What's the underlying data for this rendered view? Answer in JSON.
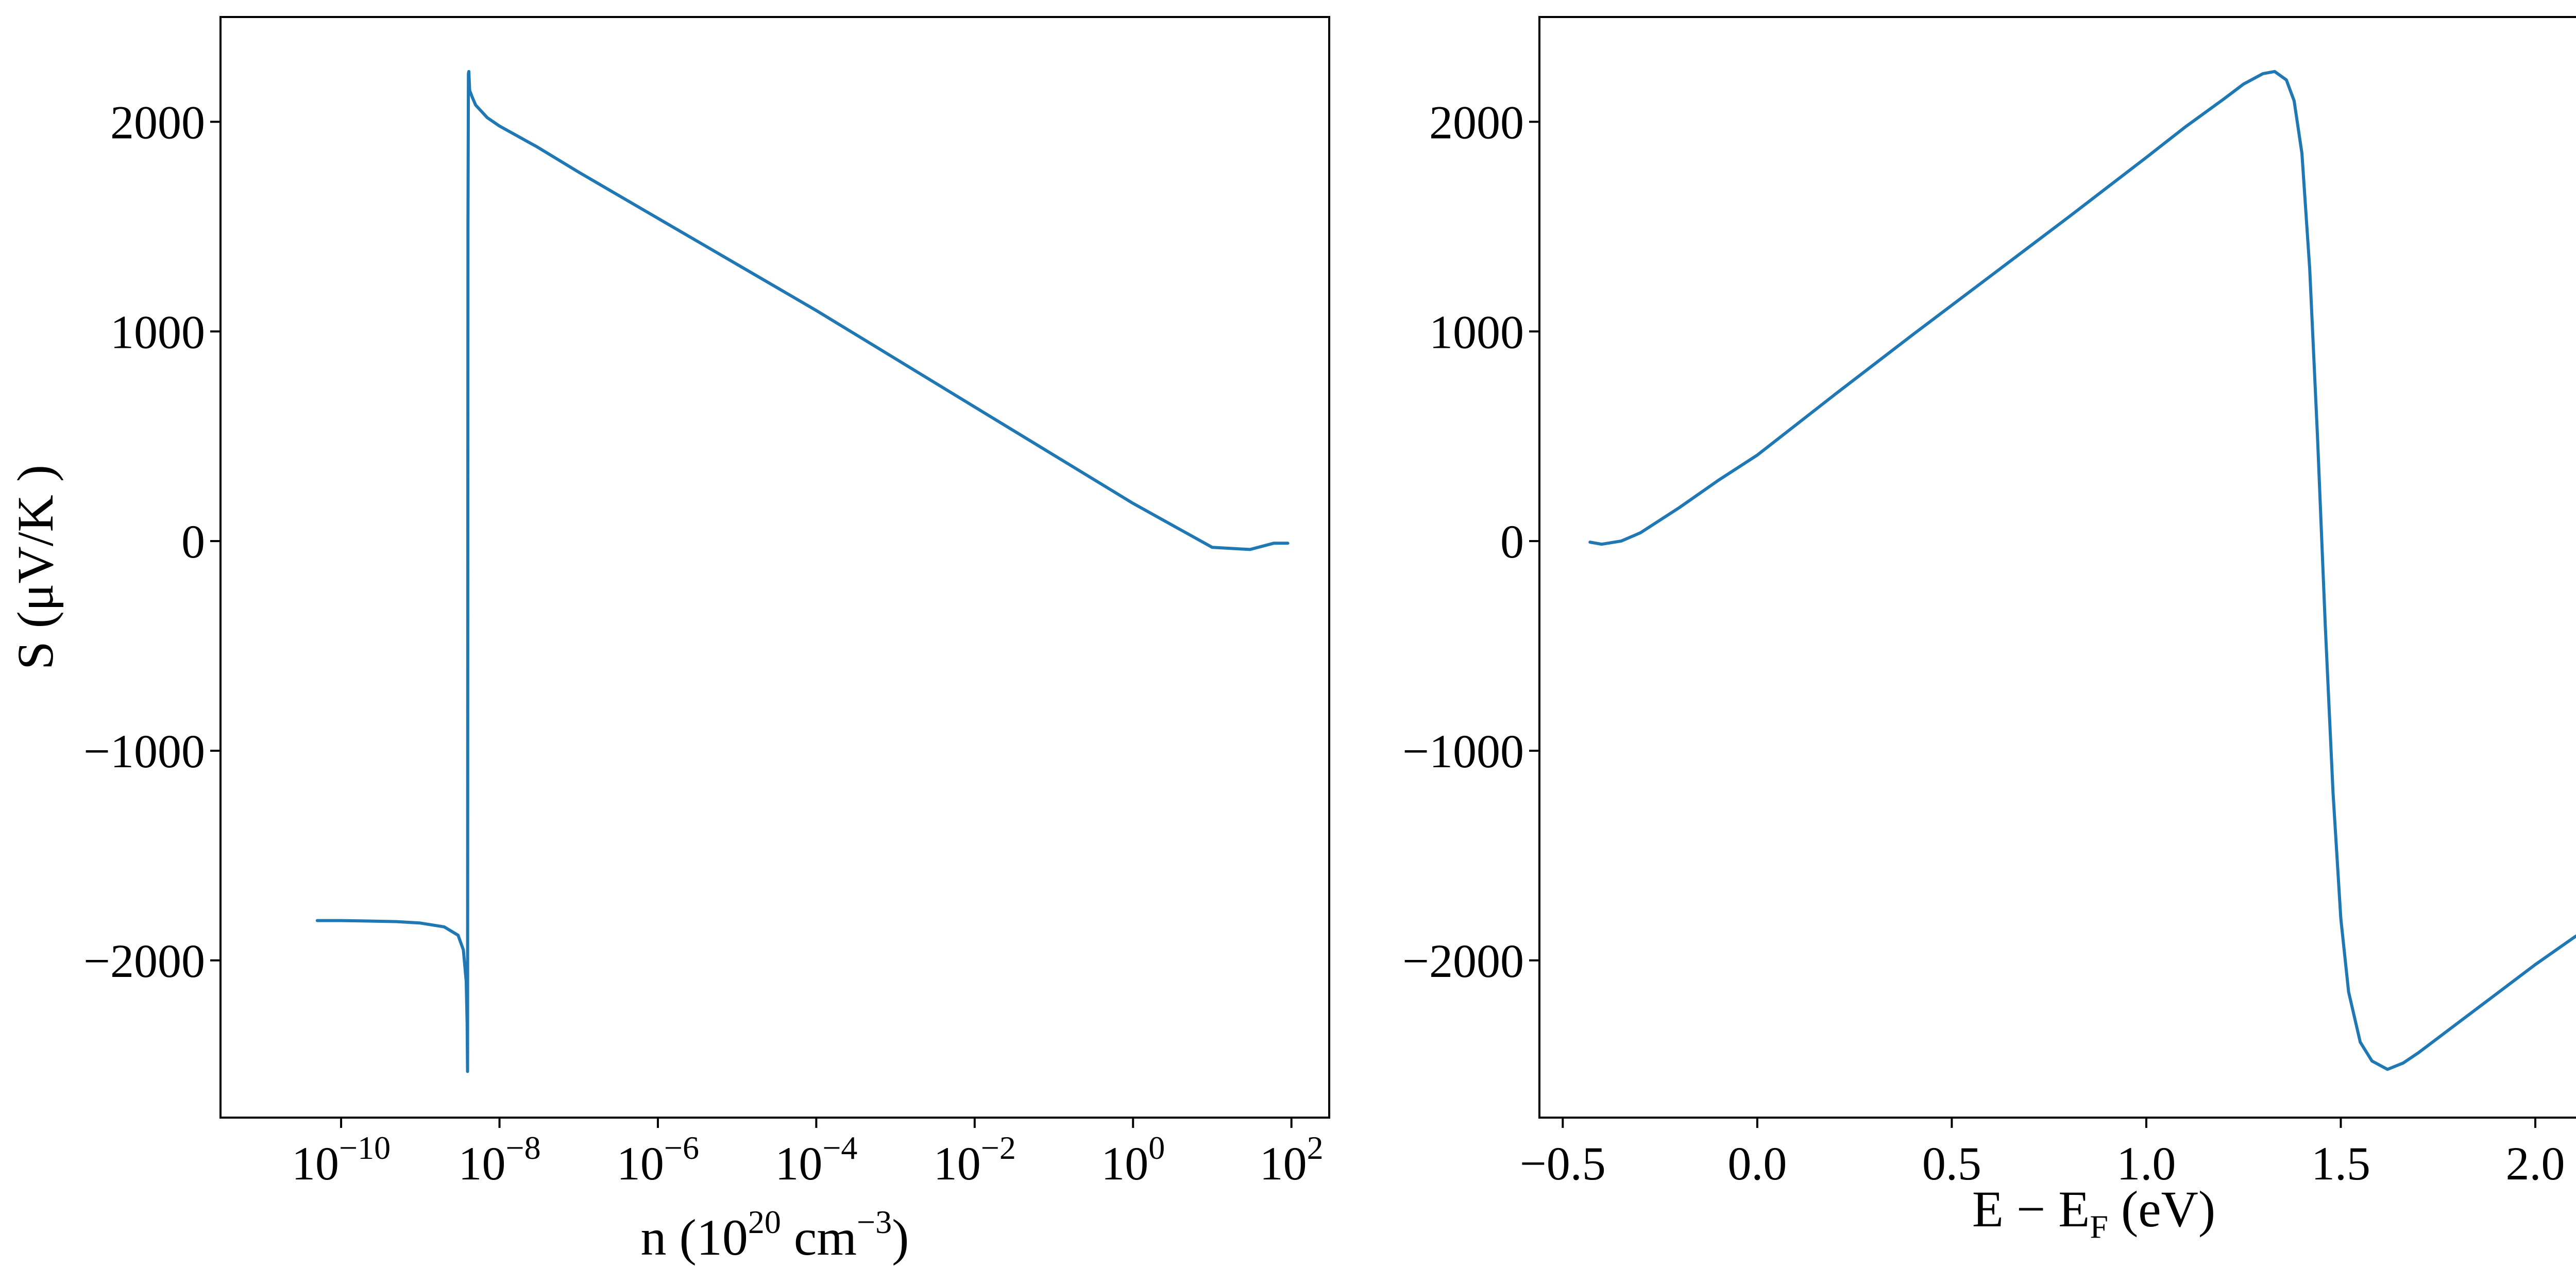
{
  "colors": {
    "series": "#1f77b4",
    "axes": "#000000",
    "background": "#ffffff"
  },
  "chart_data": [
    {
      "type": "line",
      "panel": "left",
      "title": "",
      "xlabel": {
        "base": "n (10",
        "exp1": "20",
        "mid": " cm",
        "exp2": "−3",
        "end": ")"
      },
      "ylabel": "S (μV/K )",
      "xscale": "log",
      "xlim": [
        3e-12,
        300.0
      ],
      "ylim": [
        -2750,
        2500
      ],
      "xticks": [
        {
          "value": 1e-10,
          "base": "10",
          "exp": "−10"
        },
        {
          "value": 1e-08,
          "base": "10",
          "exp": "−8"
        },
        {
          "value": 1e-06,
          "base": "10",
          "exp": "−6"
        },
        {
          "value": 0.0001,
          "base": "10",
          "exp": "−4"
        },
        {
          "value": 0.01,
          "base": "10",
          "exp": "−2"
        },
        {
          "value": 1,
          "base": "10",
          "exp": "0"
        },
        {
          "value": 100,
          "base": "10",
          "exp": "2"
        }
      ],
      "yticks": [
        {
          "value": 2000,
          "label": "2000"
        },
        {
          "value": 1000,
          "label": "1000"
        },
        {
          "value": 0,
          "label": "0"
        },
        {
          "value": -1000,
          "label": "−1000"
        },
        {
          "value": -2000,
          "label": "−2000"
        }
      ],
      "grid": false,
      "legend": "none",
      "series": [
        {
          "x": [
            5e-11,
            1e-10,
            2e-10,
            5e-10,
            1e-09,
            2e-09,
            3e-09,
            3.5e-09,
            3.8e-09,
            3.9e-09,
            3.95e-09,
            4e-09,
            4.05e-09,
            4.1e-09,
            4.2e-09,
            4.5e-09,
            5e-09,
            7e-09,
            1e-08,
            3e-08,
            1e-07,
            1e-06,
            1e-05,
            0.0001,
            0.001,
            0.01,
            0.1,
            1,
            10,
            30,
            60,
            90
          ],
          "y": [
            -1810,
            -1810,
            -1812,
            -1815,
            -1822,
            -1840,
            -1880,
            -1950,
            -2100,
            -2300,
            -2530,
            1500,
            2230,
            2240,
            2150,
            2120,
            2080,
            2020,
            1980,
            1880,
            1760,
            1540,
            1320,
            1100,
            870,
            640,
            410,
            180,
            -30,
            -40,
            -10,
            -10
          ]
        }
      ]
    },
    {
      "type": "line",
      "panel": "right",
      "title": "",
      "xlabel": {
        "main": "E − E",
        "sub": "F",
        "end": " (eV)"
      },
      "ylabel": "",
      "xscale": "linear",
      "xlim": [
        -0.56,
        2.29
      ],
      "ylim": [
        -2750,
        2500
      ],
      "xticks": [
        {
          "value": -0.5,
          "label": "−0.5"
        },
        {
          "value": 0.0,
          "label": "0.0"
        },
        {
          "value": 0.5,
          "label": "0.5"
        },
        {
          "value": 1.0,
          "label": "1.0"
        },
        {
          "value": 1.5,
          "label": "1.5"
        },
        {
          "value": 2.0,
          "label": "2.0"
        }
      ],
      "yticks": [
        {
          "value": 2000,
          "label": "2000"
        },
        {
          "value": 1000,
          "label": "1000"
        },
        {
          "value": 0,
          "label": "0"
        },
        {
          "value": -1000,
          "label": "−1000"
        },
        {
          "value": -2000,
          "label": "−2000"
        }
      ],
      "grid": false,
      "legend": "none",
      "series": [
        {
          "x": [
            -0.43,
            -0.4,
            -0.35,
            -0.3,
            -0.2,
            -0.1,
            0.0,
            0.2,
            0.4,
            0.6,
            0.8,
            1.0,
            1.1,
            1.2,
            1.25,
            1.3,
            1.33,
            1.36,
            1.38,
            1.4,
            1.42,
            1.44,
            1.46,
            1.48,
            1.5,
            1.52,
            1.55,
            1.58,
            1.62,
            1.66,
            1.7,
            1.8,
            1.9,
            2.0,
            2.1,
            2.17
          ],
          "y": [
            -5,
            -15,
            0,
            40,
            160,
            290,
            410,
            700,
            985,
            1265,
            1545,
            1830,
            1975,
            2110,
            2180,
            2230,
            2240,
            2200,
            2100,
            1850,
            1300,
            500,
            -400,
            -1200,
            -1800,
            -2150,
            -2390,
            -2480,
            -2520,
            -2490,
            -2440,
            -2300,
            -2160,
            -2020,
            -1890,
            -1810
          ]
        }
      ]
    }
  ]
}
